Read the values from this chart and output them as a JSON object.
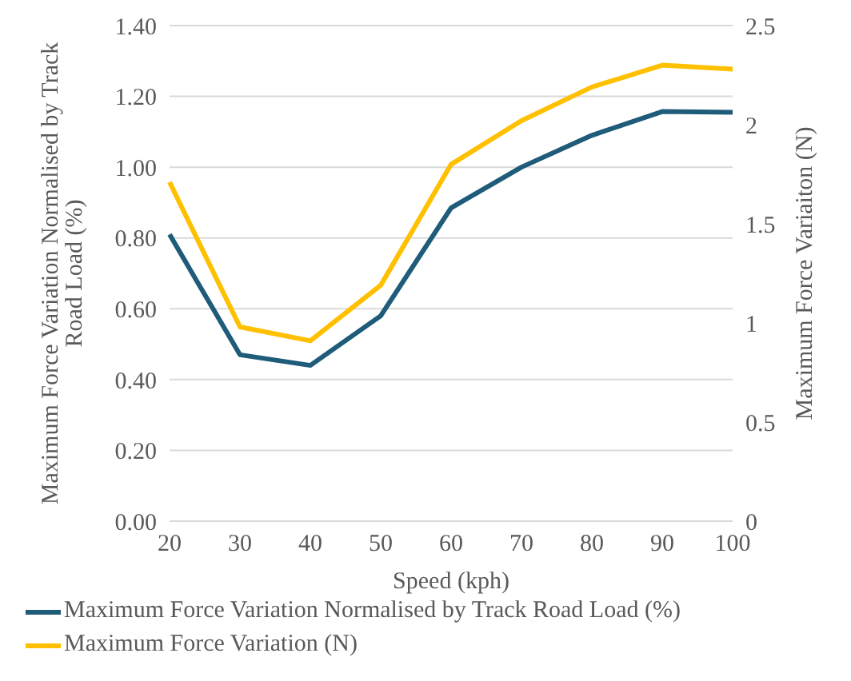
{
  "chart_data": {
    "type": "line",
    "xlabel": "Speed (kph)",
    "ylabel": "Maximum Force Variation Normalised by Track Road Load (%)",
    "y2label": "Maximum Force Variaiton (N)",
    "categories": [
      "20",
      "30",
      "40",
      "50",
      "60",
      "70",
      "80",
      "90",
      "100"
    ],
    "series": [
      {
        "name": "Maximum Force Variation Normalised by Track Road Load (%)",
        "color": "#1f5c7a",
        "values": [
          0.81,
          0.47,
          0.44,
          0.58,
          0.885,
          1.0,
          1.09,
          1.157,
          1.155
        ]
      },
      {
        "name": "Maximum Force Variation (N)",
        "color": "#ffc000",
        "axis": "y2",
        "values": [
          1.71,
          0.98,
          0.91,
          1.19,
          1.8,
          2.02,
          2.19,
          2.3,
          2.28
        ]
      }
    ],
    "ylim": [
      0,
      1.4
    ],
    "yticks": [
      {
        "value": 0,
        "label": "0.00"
      },
      {
        "value": 0.2,
        "label": "0.20"
      },
      {
        "value": 0.4,
        "label": "0.40"
      },
      {
        "value": 0.6,
        "label": "0.60"
      },
      {
        "value": 0.8,
        "label": "0.80"
      },
      {
        "value": 1.0,
        "label": "1.00"
      },
      {
        "value": 1.2,
        "label": "1.20"
      },
      {
        "value": 1.4,
        "label": "1.40"
      }
    ],
    "y2lim": [
      0,
      2.5
    ],
    "y2ticks": [
      0,
      0.5,
      1,
      1.5,
      2,
      2.5
    ],
    "grid": "y",
    "legend": "bottom",
    "marker": "none",
    "line_style": "solid"
  }
}
